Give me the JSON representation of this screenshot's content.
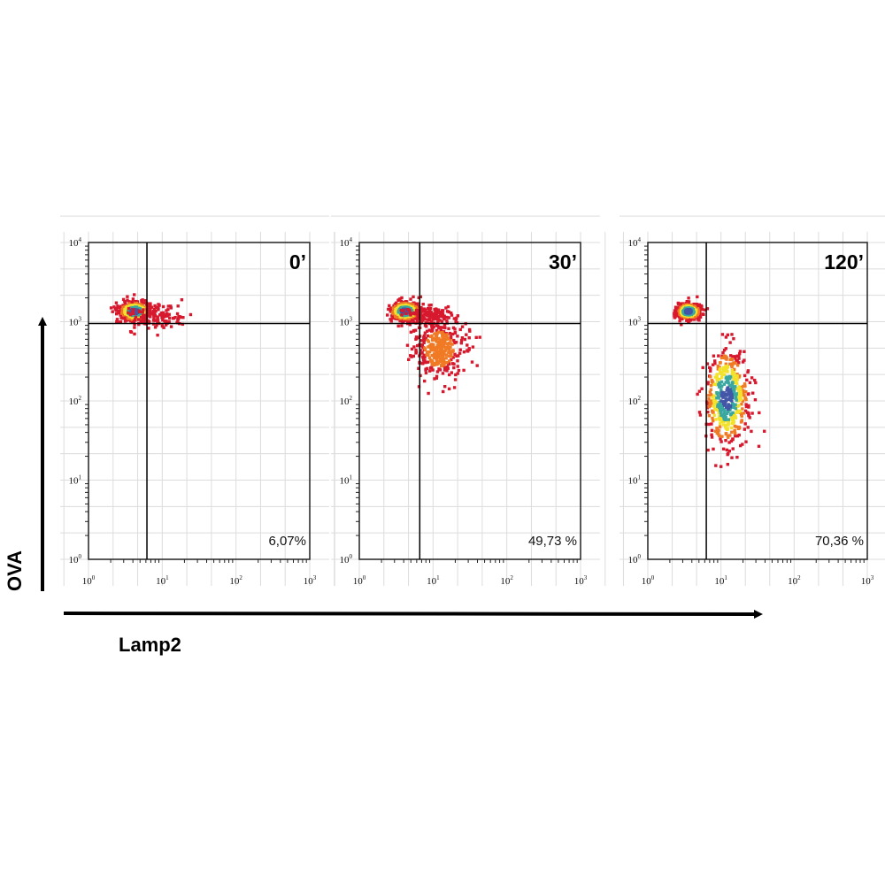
{
  "figure": {
    "y_axis_label": "OVA",
    "x_axis_label": "Lamp2"
  },
  "colors": {
    "density_low": "#d7192e",
    "density_mid": "#f07a25",
    "density_high": "#f2e22a",
    "density_core": "#3aa8a0",
    "density_peak": "#4356a8",
    "gate_line": "#000000",
    "grid": "#dcdcdc"
  },
  "chart_data": [
    {
      "type": "scatter",
      "subtype": "flow-cytometry density plot",
      "title": "0’",
      "gate_percentage": "6,07%",
      "x_scale": "log",
      "y_scale": "log",
      "xlim": [
        1,
        1000
      ],
      "ylim": [
        1,
        10000
      ],
      "x_ticks": [
        {
          "base": "10",
          "exp": "0",
          "value": 1
        },
        {
          "base": "10",
          "exp": "1",
          "value": 10
        },
        {
          "base": "10",
          "exp": "2",
          "value": 100
        },
        {
          "base": "10",
          "exp": "3",
          "value": 1000
        }
      ],
      "y_ticks": [
        {
          "base": "10",
          "exp": "0",
          "value": 1
        },
        {
          "base": "10",
          "exp": "1",
          "value": 10
        },
        {
          "base": "10",
          "exp": "2",
          "value": 100
        },
        {
          "base": "10",
          "exp": "3",
          "value": 1000
        },
        {
          "base": "10",
          "exp": "4",
          "value": 10000
        }
      ],
      "gate": {
        "x": 6.2,
        "y": 950
      },
      "populations": [
        {
          "center_x": 4.2,
          "center_y": 1350,
          "spread_log_x": 0.1,
          "spread_log_y": 0.06,
          "density": "high"
        },
        {
          "center_x": 8.0,
          "center_y": 1150,
          "spread_log_x": 0.2,
          "spread_log_y": 0.08,
          "density": "low"
        }
      ]
    },
    {
      "type": "scatter",
      "subtype": "flow-cytometry density plot",
      "title": "30’",
      "gate_percentage": "49,73 %",
      "x_scale": "log",
      "y_scale": "log",
      "xlim": [
        1,
        1000
      ],
      "ylim": [
        1,
        10000
      ],
      "x_ticks": [
        {
          "base": "10",
          "exp": "0",
          "value": 1
        },
        {
          "base": "10",
          "exp": "1",
          "value": 10
        },
        {
          "base": "10",
          "exp": "2",
          "value": 100
        },
        {
          "base": "10",
          "exp": "3",
          "value": 1000
        }
      ],
      "y_ticks": [
        {
          "base": "10",
          "exp": "0",
          "value": 1
        },
        {
          "base": "10",
          "exp": "1",
          "value": 10
        },
        {
          "base": "10",
          "exp": "2",
          "value": 100
        },
        {
          "base": "10",
          "exp": "3",
          "value": 1000
        },
        {
          "base": "10",
          "exp": "4",
          "value": 10000
        }
      ],
      "gate": {
        "x": 6.6,
        "y": 950
      },
      "populations": [
        {
          "center_x": 4.2,
          "center_y": 1350,
          "spread_log_x": 0.1,
          "spread_log_y": 0.06,
          "density": "high"
        },
        {
          "center_x": 9.0,
          "center_y": 1200,
          "spread_log_x": 0.15,
          "spread_log_y": 0.06,
          "density": "low"
        },
        {
          "center_x": 12.0,
          "center_y": 450,
          "spread_log_x": 0.17,
          "spread_log_y": 0.2,
          "density": "mid"
        }
      ]
    },
    {
      "type": "scatter",
      "subtype": "flow-cytometry density plot",
      "title": "120’",
      "gate_percentage": "70,36 %",
      "x_scale": "log",
      "y_scale": "log",
      "xlim": [
        1,
        1000
      ],
      "ylim": [
        1,
        10000
      ],
      "x_ticks": [
        {
          "base": "10",
          "exp": "0",
          "value": 1
        },
        {
          "base": "10",
          "exp": "1",
          "value": 10
        },
        {
          "base": "10",
          "exp": "2",
          "value": 100
        },
        {
          "base": "10",
          "exp": "3",
          "value": 1000
        }
      ],
      "y_ticks": [
        {
          "base": "10",
          "exp": "0",
          "value": 1
        },
        {
          "base": "10",
          "exp": "1",
          "value": 10
        },
        {
          "base": "10",
          "exp": "2",
          "value": 100
        },
        {
          "base": "10",
          "exp": "3",
          "value": 1000
        },
        {
          "base": "10",
          "exp": "4",
          "value": 10000
        }
      ],
      "gate": {
        "x": 6.3,
        "y": 950
      },
      "populations": [
        {
          "center_x": 3.6,
          "center_y": 1350,
          "spread_log_x": 0.08,
          "spread_log_y": 0.05,
          "density": "high"
        },
        {
          "center_x": 12.0,
          "center_y": 110,
          "spread_log_x": 0.15,
          "spread_log_y": 0.3,
          "density": "high"
        }
      ]
    }
  ]
}
